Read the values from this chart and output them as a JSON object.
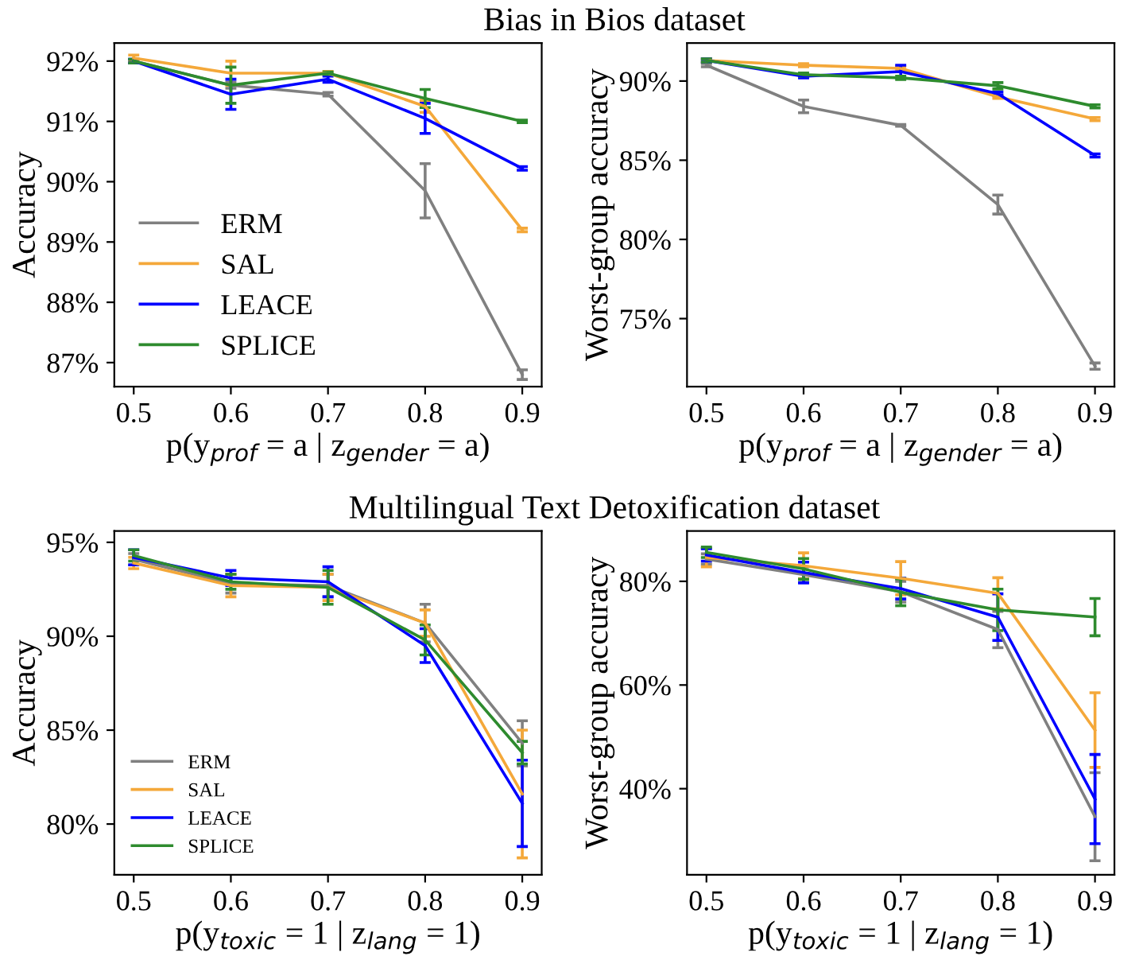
{
  "chart_data": [
    {
      "type": "line",
      "title": "Bias in Bios dataset",
      "xlabel": "p(y$_{prof}$ = a | z$_{gender}$ = a)",
      "ylabel": "Accuracy",
      "x": [
        0.5,
        0.6,
        0.7,
        0.8,
        0.9
      ],
      "xlim": [
        0.48,
        0.92
      ],
      "xticks": [
        0.5,
        0.6,
        0.7,
        0.8,
        0.9
      ],
      "ylim": [
        86.6,
        92.3
      ],
      "yticks": [
        {
          "value": 87,
          "label": "87%"
        },
        {
          "value": 88,
          "label": "88%"
        },
        {
          "value": 89,
          "label": "89%"
        },
        {
          "value": 90,
          "label": "90%"
        },
        {
          "value": 91,
          "label": "91%"
        },
        {
          "value": 92,
          "label": "92%"
        }
      ],
      "legend": "bottom left",
      "grid": false,
      "marker": "none",
      "line_style": "solid",
      "series": [
        {
          "name": "ERM",
          "color": "#808080",
          "values": [
            92.0,
            91.6,
            91.45,
            89.85,
            86.8
          ],
          "errors": [
            0.03,
            0.05,
            0.03,
            0.45,
            0.08
          ]
        },
        {
          "name": "SAL",
          "color": "#f4a83a",
          "values": [
            92.05,
            91.8,
            91.8,
            91.25,
            89.2
          ],
          "errors": [
            0.05,
            0.2,
            0.03,
            0.1,
            0.03
          ]
        },
        {
          "name": "LEACE",
          "color": "#0000ff",
          "values": [
            92.0,
            91.45,
            91.7,
            91.05,
            90.22
          ],
          "errors": [
            0.03,
            0.25,
            0.05,
            0.25,
            0.03
          ]
        },
        {
          "name": "SPLICE",
          "color": "#2e8b2e",
          "values": [
            92.0,
            91.6,
            91.8,
            91.38,
            91.0
          ],
          "errors": [
            0.03,
            0.3,
            0.02,
            0.15,
            0.02
          ]
        }
      ]
    },
    {
      "type": "line",
      "xlabel": "p(y$_{prof}$ = a | z$_{gender}$ = a)",
      "ylabel": "Worst-group accuracy",
      "x": [
        0.5,
        0.6,
        0.7,
        0.8,
        0.9
      ],
      "xlim": [
        0.48,
        0.92
      ],
      "xticks": [
        0.5,
        0.6,
        0.7,
        0.8,
        0.9
      ],
      "ylim": [
        70.7,
        92.4
      ],
      "yticks": [
        {
          "value": 75,
          "label": "75%"
        },
        {
          "value": 80,
          "label": "80%"
        },
        {
          "value": 85,
          "label": "85%"
        },
        {
          "value": 90,
          "label": "90%"
        }
      ],
      "grid": false,
      "marker": "none",
      "line_style": "solid",
      "series": [
        {
          "color": "#808080",
          "values": [
            91.0,
            88.4,
            87.2,
            82.2,
            72.0
          ],
          "errors": [
            0.1,
            0.4,
            0.05,
            0.6,
            0.2
          ]
        },
        {
          "color": "#f4a83a",
          "values": [
            91.3,
            91.0,
            90.8,
            89.0,
            87.6
          ],
          "errors": [
            0.1,
            0.1,
            0.1,
            0.1,
            0.1
          ]
        },
        {
          "color": "#0000ff",
          "values": [
            91.3,
            90.3,
            90.6,
            89.2,
            85.3
          ],
          "errors": [
            0.1,
            0.1,
            0.4,
            0.1,
            0.1
          ]
        },
        {
          "color": "#2e8b2e",
          "values": [
            91.3,
            90.4,
            90.2,
            89.7,
            88.4
          ],
          "errors": [
            0.1,
            0.1,
            0.1,
            0.2,
            0.1
          ]
        }
      ]
    },
    {
      "type": "line",
      "title": "Multilingual Text Detoxification dataset",
      "xlabel": "p(y$_{toxic}$ = 1 | z$_{lang}$ = 1)",
      "ylabel": "Accuracy",
      "x": [
        0.5,
        0.6,
        0.7,
        0.8,
        0.9
      ],
      "xlim": [
        0.48,
        0.92
      ],
      "xticks": [
        0.5,
        0.6,
        0.7,
        0.8,
        0.9
      ],
      "ylim": [
        77.3,
        95.6
      ],
      "yticks": [
        {
          "value": 80,
          "label": "80%"
        },
        {
          "value": 85,
          "label": "85%"
        },
        {
          "value": 90,
          "label": "90%"
        },
        {
          "value": 95,
          "label": "95%"
        }
      ],
      "legend": "bottom left",
      "grid": false,
      "marker": "none",
      "line_style": "solid",
      "series": [
        {
          "name": "ERM",
          "color": "#808080",
          "values": [
            94.1,
            92.8,
            92.7,
            90.7,
            84.3
          ],
          "errors": [
            0.3,
            0.5,
            0.6,
            1.0,
            1.2
          ]
        },
        {
          "name": "SAL",
          "color": "#f4a83a",
          "values": [
            93.9,
            92.7,
            92.6,
            90.7,
            81.6
          ],
          "errors": [
            0.3,
            0.6,
            0.7,
            0.7,
            3.4
          ]
        },
        {
          "name": "LEACE",
          "color": "#0000ff",
          "values": [
            94.2,
            93.1,
            92.9,
            89.5,
            81.1
          ],
          "errors": [
            0.4,
            0.4,
            0.8,
            0.9,
            2.3
          ]
        },
        {
          "name": "SPLICE",
          "color": "#2e8b2e",
          "values": [
            94.3,
            92.9,
            92.6,
            89.8,
            83.8
          ],
          "errors": [
            0.3,
            0.4,
            0.9,
            0.8,
            0.6
          ]
        }
      ]
    },
    {
      "type": "line",
      "xlabel": "p(y$_{toxic}$ = 1 | z$_{lang}$ = 1)",
      "ylabel": "Worst-group accuracy",
      "x": [
        0.5,
        0.6,
        0.7,
        0.8,
        0.9
      ],
      "xlim": [
        0.48,
        0.92
      ],
      "xticks": [
        0.5,
        0.6,
        0.7,
        0.8,
        0.9
      ],
      "ylim": [
        23.4,
        89.7
      ],
      "yticks": [
        {
          "value": 40,
          "label": "40%"
        },
        {
          "value": 60,
          "label": "60%"
        },
        {
          "value": 80,
          "label": "80%"
        }
      ],
      "grid": false,
      "marker": "none",
      "line_style": "solid",
      "series": [
        {
          "color": "#808080",
          "values": [
            84.3,
            81.3,
            78.0,
            70.7,
            34.6
          ],
          "errors": [
            1.0,
            1.5,
            2.0,
            3.5,
            8.5
          ]
        },
        {
          "color": "#f4a83a",
          "values": [
            84.6,
            83.0,
            80.6,
            77.7,
            51.3
          ],
          "errors": [
            1.8,
            2.5,
            3.2,
            3.0,
            7.2
          ]
        },
        {
          "color": "#0000ff",
          "values": [
            85.1,
            81.7,
            78.6,
            73.1,
            38.0
          ],
          "errors": [
            1.2,
            2.0,
            2.0,
            4.5,
            8.6
          ]
        },
        {
          "color": "#2e8b2e",
          "values": [
            85.6,
            82.4,
            77.9,
            74.5,
            73.1
          ],
          "errors": [
            1.0,
            2.0,
            2.6,
            4.0,
            3.6
          ]
        }
      ]
    }
  ]
}
